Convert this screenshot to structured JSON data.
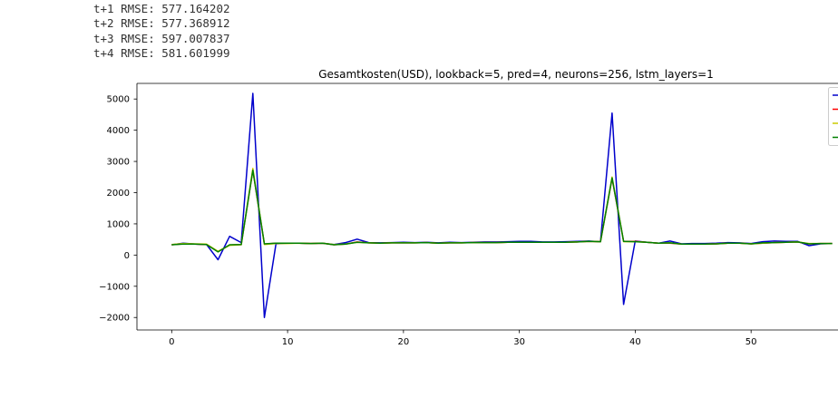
{
  "output": {
    "lines": [
      "t+1 RMSE: 577.164202",
      "t+2 RMSE: 577.368912",
      "t+3 RMSE: 597.007837",
      "t+4 RMSE: 581.601999"
    ]
  },
  "chart_data": {
    "type": "line",
    "title": "Gesamtkosten(USD), lookback=5, pred=4, neurons=256, lstm_layers=1",
    "xlabel": "",
    "ylabel": "",
    "xlim": [
      -3,
      57.5
    ],
    "ylim": [
      -2400,
      5500
    ],
    "x_ticks": [
      0,
      10,
      20,
      30,
      40,
      50
    ],
    "y_ticks": [
      -2000,
      -1000,
      0,
      1000,
      2000,
      3000,
      4000,
      5000
    ],
    "x_tick_labels": [
      "0",
      "10",
      "20",
      "30",
      "40",
      "50"
    ],
    "y_tick_labels": [
      "−2000",
      "−1000",
      "0",
      "1000",
      "2000",
      "3000",
      "4000",
      "5000"
    ],
    "legend_position": "top-right",
    "grid": false,
    "x": [
      0,
      1,
      2,
      3,
      4,
      5,
      6,
      7,
      8,
      9,
      10,
      11,
      12,
      13,
      14,
      15,
      16,
      17,
      18,
      19,
      20,
      21,
      22,
      23,
      24,
      25,
      26,
      27,
      28,
      29,
      30,
      31,
      32,
      33,
      34,
      35,
      36,
      37,
      38,
      39,
      40,
      41,
      42,
      43,
      44,
      45,
      46,
      47,
      48,
      49,
      50,
      51,
      52,
      53,
      54,
      55,
      56,
      57
    ],
    "series": [
      {
        "color": "#0000cc",
        "values": [
          330,
          380,
          350,
          340,
          -150,
          600,
          400,
          5180,
          -2000,
          360,
          380,
          380,
          370,
          380,
          340,
          400,
          510,
          400,
          390,
          400,
          410,
          400,
          410,
          390,
          410,
          400,
          410,
          420,
          420,
          430,
          440,
          440,
          420,
          420,
          430,
          440,
          450,
          430,
          4550,
          -1580,
          450,
          410,
          380,
          450,
          360,
          370,
          370,
          380,
          400,
          390,
          370,
          430,
          450,
          440,
          440,
          300,
          360,
          370
        ]
      },
      {
        "color": "#ff0000",
        "values": [
          330,
          360,
          350,
          340,
          110,
          320,
          340,
          2720,
          350,
          380,
          380,
          380,
          370,
          380,
          330,
          350,
          420,
          390,
          380,
          390,
          390,
          390,
          400,
          380,
          390,
          390,
          400,
          400,
          400,
          410,
          410,
          410,
          410,
          410,
          410,
          420,
          440,
          430,
          2460,
          440,
          440,
          410,
          380,
          380,
          350,
          350,
          350,
          360,
          380,
          380,
          360,
          380,
          400,
          410,
          420,
          360,
          370,
          370
        ]
      },
      {
        "color": "#cccc00",
        "values": [
          340,
          370,
          360,
          350,
          120,
          310,
          330,
          2780,
          340,
          370,
          370,
          380,
          370,
          380,
          340,
          350,
          410,
          390,
          380,
          390,
          390,
          390,
          400,
          380,
          390,
          390,
          400,
          400,
          400,
          410,
          410,
          410,
          410,
          410,
          410,
          420,
          440,
          430,
          2500,
          430,
          430,
          410,
          380,
          390,
          350,
          350,
          350,
          360,
          380,
          380,
          360,
          380,
          400,
          410,
          420,
          370,
          370,
          370
        ]
      },
      {
        "color": "#008000",
        "values": [
          330,
          350,
          350,
          340,
          100,
          330,
          340,
          2720,
          360,
          380,
          380,
          380,
          370,
          380,
          330,
          350,
          410,
          390,
          380,
          390,
          390,
          390,
          400,
          380,
          390,
          390,
          400,
          400,
          400,
          410,
          410,
          410,
          410,
          410,
          410,
          420,
          440,
          430,
          2470,
          440,
          430,
          410,
          380,
          390,
          350,
          350,
          350,
          360,
          380,
          380,
          360,
          390,
          400,
          410,
          420,
          360,
          370,
          370
        ]
      }
    ]
  }
}
